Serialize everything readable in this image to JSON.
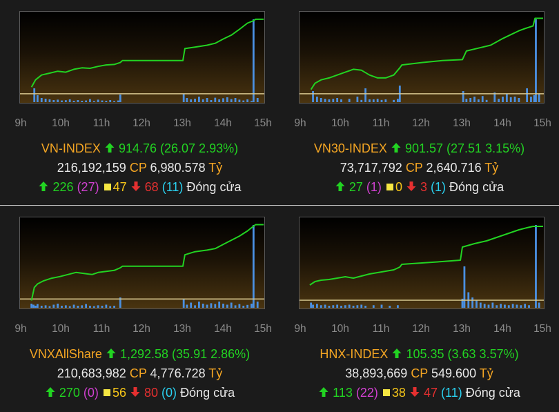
{
  "colors": {
    "up": "#22d322",
    "down": "#e53030",
    "unchanged": "#f5c518",
    "ceiling": "#d040d0",
    "floor": "#2ad1f0",
    "index_name": "#f5a623",
    "volume_bars": "#4a90e2",
    "reference_line": "#d8c890"
  },
  "icons": {
    "up": "up-arrow-icon",
    "down": "down-arrow-icon",
    "unchanged": "yellow-square-icon"
  },
  "time_labels": [
    "9h",
    "10h",
    "11h",
    "12h",
    "13h",
    "14h",
    "15h"
  ],
  "chart_data": [
    {
      "type": "line",
      "x_labels": [
        "9h",
        "10h",
        "11h",
        "12h",
        "13h",
        "14h",
        "15h"
      ],
      "index_line": [
        [
          9.25,
          0.47
        ],
        [
          9.35,
          0.62
        ],
        [
          9.5,
          0.72
        ],
        [
          9.7,
          0.76
        ],
        [
          9.9,
          0.8
        ],
        [
          10.1,
          0.78
        ],
        [
          10.3,
          0.84
        ],
        [
          10.5,
          0.87
        ],
        [
          10.7,
          0.86
        ],
        [
          10.9,
          0.9
        ],
        [
          11.1,
          0.93
        ],
        [
          11.3,
          0.94
        ],
        [
          11.45,
          0.98
        ],
        [
          11.5,
          1.02
        ],
        [
          12.0,
          1.02
        ],
        [
          13.0,
          1.02
        ],
        [
          13.05,
          1.27
        ],
        [
          13.3,
          1.3
        ],
        [
          13.6,
          1.34
        ],
        [
          13.8,
          1.38
        ],
        [
          14.0,
          1.47
        ],
        [
          14.2,
          1.55
        ],
        [
          14.4,
          1.67
        ],
        [
          14.6,
          1.8
        ],
        [
          14.75,
          1.85
        ],
        [
          14.8,
          1.88
        ],
        [
          15.0,
          1.88
        ]
      ],
      "reference_value": 0.33,
      "y_range": [
        0.2,
        1.95
      ],
      "volume": [
        [
          9.32,
          1.0
        ],
        [
          9.4,
          0.5
        ],
        [
          9.5,
          0.3
        ],
        [
          9.6,
          0.25
        ],
        [
          9.7,
          0.2
        ],
        [
          9.8,
          0.15
        ],
        [
          9.9,
          0.18
        ],
        [
          10.0,
          0.12
        ],
        [
          10.1,
          0.14
        ],
        [
          10.2,
          0.2
        ],
        [
          10.3,
          0.1
        ],
        [
          10.4,
          0.15
        ],
        [
          10.5,
          0.1
        ],
        [
          10.6,
          0.12
        ],
        [
          10.7,
          0.22
        ],
        [
          10.8,
          0.08
        ],
        [
          10.9,
          0.18
        ],
        [
          11.0,
          0.12
        ],
        [
          11.1,
          0.1
        ],
        [
          11.2,
          0.15
        ],
        [
          11.3,
          0.08
        ],
        [
          11.4,
          0.12
        ],
        [
          11.45,
          0.55
        ],
        [
          13.02,
          0.6
        ],
        [
          13.1,
          0.3
        ],
        [
          13.2,
          0.2
        ],
        [
          13.3,
          0.25
        ],
        [
          13.4,
          0.4
        ],
        [
          13.5,
          0.2
        ],
        [
          13.6,
          0.3
        ],
        [
          13.7,
          0.15
        ],
        [
          13.8,
          0.32
        ],
        [
          13.9,
          0.2
        ],
        [
          14.0,
          0.28
        ],
        [
          14.1,
          0.35
        ],
        [
          14.2,
          0.22
        ],
        [
          14.3,
          0.3
        ],
        [
          14.4,
          0.18
        ],
        [
          14.5,
          0.12
        ],
        [
          14.6,
          0.2
        ],
        [
          14.7,
          0.08
        ],
        [
          14.75,
          6.0
        ],
        [
          14.85,
          0.3
        ]
      ],
      "volume_max": 6.0
    },
    {
      "type": "line",
      "x_labels": [
        "9h",
        "10h",
        "11h",
        "12h",
        "13h",
        "14h",
        "15h"
      ],
      "index_line": [
        [
          9.25,
          0.42
        ],
        [
          9.35,
          0.55
        ],
        [
          9.5,
          0.62
        ],
        [
          9.7,
          0.66
        ],
        [
          9.9,
          0.72
        ],
        [
          10.1,
          0.78
        ],
        [
          10.3,
          0.84
        ],
        [
          10.5,
          0.82
        ],
        [
          10.7,
          0.72
        ],
        [
          10.9,
          0.66
        ],
        [
          11.1,
          0.66
        ],
        [
          11.3,
          0.72
        ],
        [
          11.45,
          0.87
        ],
        [
          11.5,
          0.93
        ],
        [
          12.0,
          0.98
        ],
        [
          12.5,
          1.02
        ],
        [
          13.0,
          1.04
        ],
        [
          13.1,
          1.22
        ],
        [
          13.4,
          1.28
        ],
        [
          13.7,
          1.34
        ],
        [
          14.0,
          1.48
        ],
        [
          14.2,
          1.56
        ],
        [
          14.4,
          1.64
        ],
        [
          14.6,
          1.7
        ],
        [
          14.75,
          1.74
        ],
        [
          14.8,
          1.9
        ],
        [
          15.0,
          1.9
        ]
      ],
      "reference_value": 0.33,
      "y_range": [
        0.2,
        1.95
      ],
      "volume": [
        [
          9.3,
          0.4
        ],
        [
          9.4,
          0.2
        ],
        [
          9.5,
          0.15
        ],
        [
          9.6,
          0.12
        ],
        [
          9.7,
          0.1
        ],
        [
          9.8,
          0.12
        ],
        [
          9.9,
          0.15
        ],
        [
          10.0,
          0.1
        ],
        [
          10.2,
          0.12
        ],
        [
          10.4,
          0.2
        ],
        [
          10.5,
          0.08
        ],
        [
          10.6,
          0.5
        ],
        [
          10.7,
          0.1
        ],
        [
          10.8,
          0.1
        ],
        [
          10.9,
          0.12
        ],
        [
          11.0,
          0.08
        ],
        [
          11.1,
          0.1
        ],
        [
          11.3,
          0.08
        ],
        [
          11.4,
          0.12
        ],
        [
          11.45,
          0.6
        ],
        [
          13.02,
          0.4
        ],
        [
          13.1,
          0.12
        ],
        [
          13.2,
          0.15
        ],
        [
          13.3,
          0.2
        ],
        [
          13.4,
          0.1
        ],
        [
          13.5,
          0.22
        ],
        [
          13.6,
          0.08
        ],
        [
          13.8,
          0.35
        ],
        [
          13.9,
          0.12
        ],
        [
          14.0,
          0.2
        ],
        [
          14.1,
          0.3
        ],
        [
          14.2,
          0.18
        ],
        [
          14.3,
          0.2
        ],
        [
          14.4,
          0.15
        ],
        [
          14.6,
          0.5
        ],
        [
          14.7,
          0.2
        ],
        [
          14.78,
          0.25
        ],
        [
          14.82,
          3.0
        ],
        [
          14.9,
          0.3
        ]
      ],
      "volume_max": 3.0
    },
    {
      "type": "line",
      "x_labels": [
        "9h",
        "10h",
        "11h",
        "12h",
        "13h",
        "14h",
        "15h"
      ],
      "index_line": [
        [
          9.25,
          0.3
        ],
        [
          9.32,
          0.55
        ],
        [
          9.4,
          0.62
        ],
        [
          9.55,
          0.68
        ],
        [
          9.75,
          0.73
        ],
        [
          9.95,
          0.76
        ],
        [
          10.15,
          0.8
        ],
        [
          10.35,
          0.84
        ],
        [
          10.55,
          0.82
        ],
        [
          10.75,
          0.8
        ],
        [
          10.9,
          0.84
        ],
        [
          11.1,
          0.86
        ],
        [
          11.3,
          0.88
        ],
        [
          11.45,
          0.93
        ],
        [
          11.5,
          0.96
        ],
        [
          12.0,
          0.96
        ],
        [
          13.0,
          0.96
        ],
        [
          13.05,
          1.18
        ],
        [
          13.3,
          1.24
        ],
        [
          13.6,
          1.27
        ],
        [
          13.8,
          1.3
        ],
        [
          14.0,
          1.38
        ],
        [
          14.2,
          1.46
        ],
        [
          14.4,
          1.54
        ],
        [
          14.6,
          1.64
        ],
        [
          14.7,
          1.7
        ],
        [
          14.8,
          1.76
        ],
        [
          15.0,
          1.76
        ]
      ],
      "reference_value": 0.33,
      "y_range": [
        0.2,
        1.82
      ],
      "volume": [
        [
          9.25,
          0.2
        ],
        [
          9.3,
          0.15
        ],
        [
          9.35,
          0.1
        ],
        [
          9.4,
          0.18
        ],
        [
          9.5,
          0.1
        ],
        [
          9.6,
          0.12
        ],
        [
          9.7,
          0.08
        ],
        [
          9.8,
          0.15
        ],
        [
          9.9,
          0.2
        ],
        [
          10.0,
          0.1
        ],
        [
          10.1,
          0.12
        ],
        [
          10.2,
          0.08
        ],
        [
          10.3,
          0.15
        ],
        [
          10.4,
          0.1
        ],
        [
          10.5,
          0.12
        ],
        [
          10.6,
          0.18
        ],
        [
          10.7,
          0.1
        ],
        [
          10.8,
          0.08
        ],
        [
          10.9,
          0.12
        ],
        [
          11.0,
          0.1
        ],
        [
          11.1,
          0.15
        ],
        [
          11.2,
          0.08
        ],
        [
          11.3,
          0.1
        ],
        [
          11.45,
          0.5
        ],
        [
          13.02,
          0.45
        ],
        [
          13.1,
          0.15
        ],
        [
          13.2,
          0.25
        ],
        [
          13.3,
          0.12
        ],
        [
          13.4,
          0.3
        ],
        [
          13.5,
          0.2
        ],
        [
          13.6,
          0.15
        ],
        [
          13.7,
          0.22
        ],
        [
          13.8,
          0.18
        ],
        [
          13.9,
          0.3
        ],
        [
          14.0,
          0.2
        ],
        [
          14.1,
          0.15
        ],
        [
          14.2,
          0.25
        ],
        [
          14.3,
          0.12
        ],
        [
          14.4,
          0.18
        ],
        [
          14.5,
          0.1
        ],
        [
          14.6,
          0.14
        ],
        [
          14.7,
          0.2
        ],
        [
          14.75,
          4.0
        ],
        [
          14.85,
          0.3
        ]
      ],
      "volume_max": 4.0
    },
    {
      "type": "line",
      "x_labels": [
        "9h",
        "10h",
        "11h",
        "12h",
        "13h",
        "14h",
        "15h"
      ],
      "index_line": [
        [
          9.22,
          0.5
        ],
        [
          9.35,
          0.55
        ],
        [
          9.5,
          0.57
        ],
        [
          9.7,
          0.58
        ],
        [
          9.9,
          0.6
        ],
        [
          10.1,
          0.62
        ],
        [
          10.3,
          0.6
        ],
        [
          10.5,
          0.63
        ],
        [
          10.7,
          0.66
        ],
        [
          10.9,
          0.68
        ],
        [
          11.1,
          0.7
        ],
        [
          11.3,
          0.72
        ],
        [
          11.45,
          0.76
        ],
        [
          11.5,
          0.8
        ],
        [
          12.0,
          0.82
        ],
        [
          12.5,
          0.84
        ],
        [
          12.95,
          0.86
        ],
        [
          13.0,
          1.05
        ],
        [
          13.3,
          1.1
        ],
        [
          13.6,
          1.14
        ],
        [
          13.8,
          1.18
        ],
        [
          14.0,
          1.22
        ],
        [
          14.2,
          1.26
        ],
        [
          14.4,
          1.3
        ],
        [
          14.6,
          1.33
        ],
        [
          14.75,
          1.35
        ],
        [
          15.0,
          1.35
        ]
      ],
      "reference_value": 0.28,
      "y_range": [
        0.2,
        1.42
      ],
      "volume": [
        [
          9.25,
          0.2
        ],
        [
          9.3,
          0.12
        ],
        [
          9.4,
          0.15
        ],
        [
          9.5,
          0.1
        ],
        [
          9.6,
          0.12
        ],
        [
          9.7,
          0.08
        ],
        [
          9.8,
          0.1
        ],
        [
          9.9,
          0.12
        ],
        [
          10.0,
          0.08
        ],
        [
          10.1,
          0.1
        ],
        [
          10.2,
          0.12
        ],
        [
          10.3,
          0.08
        ],
        [
          10.4,
          0.1
        ],
        [
          10.5,
          0.12
        ],
        [
          10.6,
          0.08
        ],
        [
          10.8,
          0.1
        ],
        [
          11.0,
          0.12
        ],
        [
          11.2,
          0.08
        ],
        [
          11.4,
          0.1
        ],
        [
          13.0,
          0.35
        ],
        [
          13.05,
          1.6
        ],
        [
          13.15,
          0.6
        ],
        [
          13.25,
          0.4
        ],
        [
          13.35,
          0.3
        ],
        [
          13.45,
          0.2
        ],
        [
          13.55,
          0.15
        ],
        [
          13.65,
          0.12
        ],
        [
          13.75,
          0.2
        ],
        [
          13.85,
          0.1
        ],
        [
          13.95,
          0.15
        ],
        [
          14.05,
          0.12
        ],
        [
          14.15,
          0.1
        ],
        [
          14.25,
          0.15
        ],
        [
          14.35,
          0.12
        ],
        [
          14.45,
          0.1
        ],
        [
          14.55,
          0.15
        ],
        [
          14.65,
          0.1
        ],
        [
          14.82,
          3.2
        ],
        [
          14.9,
          0.2
        ]
      ],
      "volume_max": 3.2
    }
  ],
  "panels": [
    {
      "name": "VN-INDEX",
      "value": "914.76",
      "change": "(26.07 2.93%)",
      "volume": "216,192,159",
      "cp_label": "CP",
      "amount": "6,980.578",
      "unit": "Tỷ",
      "up": "226",
      "ceiling": "(27)",
      "unchanged": "47",
      "down": "68",
      "floor": "(11)",
      "status": "Đóng cửa"
    },
    {
      "name": "VN30-INDEX",
      "value": "901.57",
      "change": "(27.51 3.15%)",
      "volume": "73,717,792",
      "cp_label": "CP",
      "amount": "2,640.716",
      "unit": "Tỷ",
      "up": "27",
      "ceiling": "(1)",
      "unchanged": "0",
      "down": "3",
      "floor": "(1)",
      "status": "Đóng cửa"
    },
    {
      "name": "VNXAllShare",
      "value": "1,292.58",
      "change": "(35.91 2.86%)",
      "volume": "210,683,982",
      "cp_label": "CP",
      "amount": "4,776.728",
      "unit": "Tỷ",
      "up": "270",
      "ceiling": "(0)",
      "unchanged": "56",
      "down": "80",
      "floor": "(0)",
      "status": "Đóng cửa"
    },
    {
      "name": "HNX-INDEX",
      "value": "105.35",
      "change": "(3.63 3.57%)",
      "volume": "38,893,669",
      "cp_label": "CP",
      "amount": "549.600",
      "unit": "Tỷ",
      "up": "113",
      "ceiling": "(22)",
      "unchanged": "38",
      "down": "47",
      "floor": "(11)",
      "status": "Đóng cửa"
    }
  ]
}
